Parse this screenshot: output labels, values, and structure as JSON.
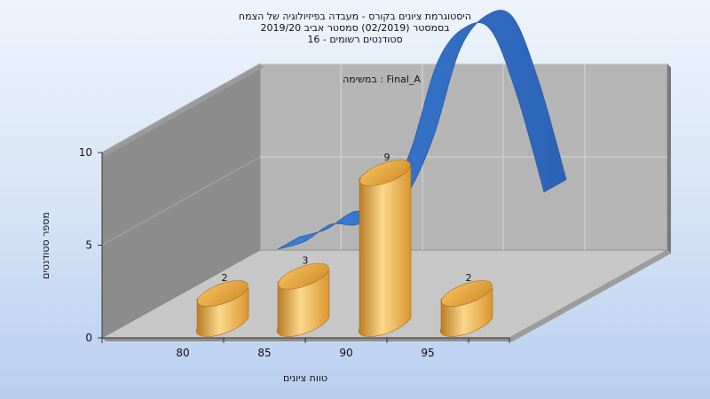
{
  "chart_data": {
    "type": "bar",
    "title_lines": [
      "היסטוגרמת ציונים בקורס - מעבדה בפיזיולוגיה של הצמח",
      "בסמסטר  (02/2019)  סמסטר אביב 2019/20",
      "סטודנטים רשומים - 16"
    ],
    "annotation": "במשימה : Final_A",
    "xlabel": "טווח ציונים",
    "ylabel": "מספר סטודנטים",
    "x_ticks": [
      "80",
      "85",
      "90",
      "95"
    ],
    "y_ticks": [
      "0",
      "5",
      "10"
    ],
    "ylim": [
      0,
      10
    ],
    "grid": true,
    "bars": [
      {
        "label": "2",
        "value": 2
      },
      {
        "label": "3",
        "value": 3
      },
      {
        "label": "9",
        "value": 9
      },
      {
        "label": "2",
        "value": 2
      }
    ],
    "curve_values": [
      0,
      0.4,
      1.3,
      1.3,
      2.2,
      5.2,
      9.8,
      11.6,
      11.5,
      8.0,
      3.0
    ],
    "colors": {
      "bar_light": "#fbd88c",
      "bar_mid": "#eaa646",
      "bar_dark": "#b97a22",
      "curve": "#2f6fc6",
      "wall_left": "#8c8c8c",
      "wall_back": "#b5b5b5",
      "floor": "#c7c7c7"
    }
  }
}
